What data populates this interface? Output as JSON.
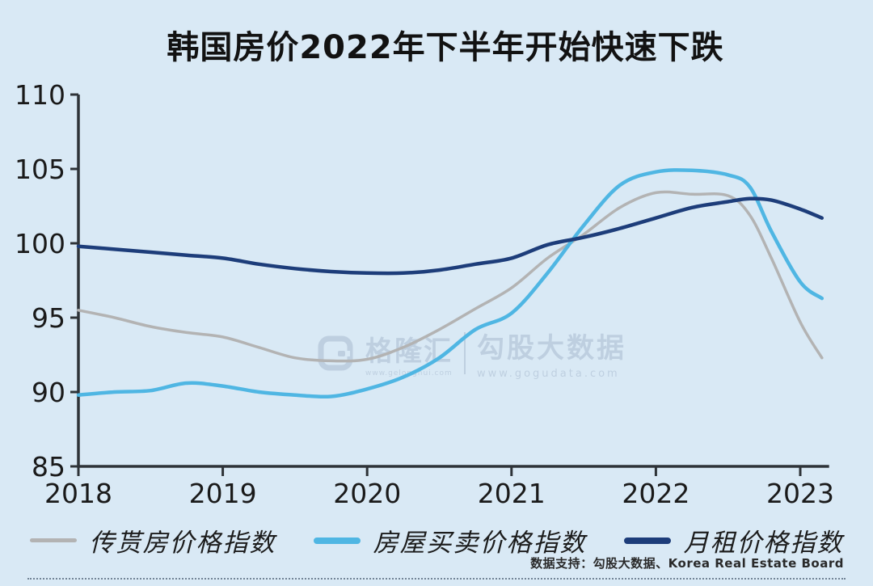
{
  "title": "韩国房价2022年下半年开始快速下跌",
  "watermark": {
    "brand": "格隆汇",
    "brand_sub": "www.gelonghui.com",
    "name": "勾股大数据",
    "url": "www.gogudata.com"
  },
  "footer": {
    "credit": "数据支持：勾股大数据、Korea Real Estate Board"
  },
  "legend": [
    {
      "label": "传贳房价格指数",
      "color": "#b3b3b3"
    },
    {
      "label": "房屋买卖价格指数",
      "color": "#4fb6e3"
    },
    {
      "label": "月租价格指数",
      "color": "#1d3d7a"
    }
  ],
  "colors": {
    "background": "#d9e9f5",
    "axis": "#2e3338",
    "tick_label": "#1a1a1a",
    "jeonse_line": "#b3b3b3",
    "sale_line": "#4fb6e3",
    "rent_line": "#1d3d7a"
  },
  "chart_data": {
    "type": "line",
    "title": "韩国房价2022年下半年开始快速下跌",
    "xlabel": "",
    "ylabel": "",
    "grid": false,
    "legend_position": "bottom",
    "xlim": [
      2018,
      2023.2
    ],
    "ylim": [
      85,
      110
    ],
    "y_ticks": [
      110,
      105,
      100,
      95,
      90,
      85
    ],
    "x_ticks": [
      2018,
      2019,
      2020,
      2021,
      2022,
      2023
    ],
    "x": [
      2018.0,
      2018.25,
      2018.5,
      2018.75,
      2019.0,
      2019.25,
      2019.5,
      2019.75,
      2020.0,
      2020.25,
      2020.5,
      2020.75,
      2021.0,
      2021.25,
      2021.5,
      2021.75,
      2022.0,
      2022.25,
      2022.5,
      2022.65,
      2022.8,
      2023.0,
      2023.15
    ],
    "series": [
      {
        "name": "传贳房价格指数",
        "color": "#b3b3b3",
        "values": [
          95.5,
          95.0,
          94.4,
          94.0,
          93.7,
          93.0,
          92.3,
          92.1,
          92.2,
          93.0,
          94.2,
          95.6,
          97.0,
          99.0,
          100.6,
          102.4,
          103.4,
          103.3,
          103.2,
          101.9,
          99.0,
          94.7,
          92.3
        ]
      },
      {
        "name": "房屋买卖价格指数",
        "color": "#4fb6e3",
        "values": [
          89.8,
          90.0,
          90.1,
          90.6,
          90.4,
          90.0,
          89.8,
          89.7,
          90.2,
          91.0,
          92.3,
          94.2,
          95.3,
          98.0,
          101.2,
          103.9,
          104.8,
          104.9,
          104.6,
          103.8,
          100.8,
          97.4,
          96.3
        ]
      },
      {
        "name": "月租价格指数",
        "color": "#1d3d7a",
        "values": [
          99.8,
          99.6,
          99.4,
          99.2,
          99.0,
          98.6,
          98.3,
          98.1,
          98.0,
          98.0,
          98.2,
          98.6,
          99.0,
          99.9,
          100.4,
          101.0,
          101.7,
          102.4,
          102.8,
          103.0,
          102.9,
          102.3,
          101.7
        ]
      }
    ]
  }
}
